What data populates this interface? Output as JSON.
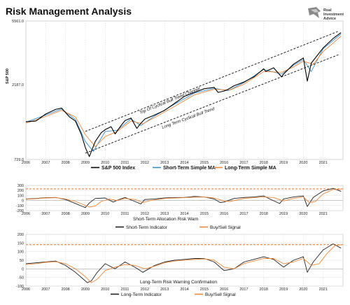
{
  "page": {
    "title": "Risk Management Analysis"
  },
  "logo": {
    "line1": "Real",
    "line2": "Investment",
    "line3": "Advice",
    "icon": "eagle-icon"
  },
  "chart_data": [
    {
      "type": "line",
      "ylabel": "S&P 500",
      "scale": "log",
      "ylim": [
        729.0,
        5561.0
      ],
      "yticks": [
        "729.0",
        "2187.0",
        "5561.0"
      ],
      "xticks": [
        "2006",
        "2007",
        "2008",
        "2009",
        "2010",
        "2011",
        "2012",
        "2013",
        "2014",
        "2015",
        "2016",
        "2017",
        "2018",
        "2019",
        "2020",
        "2021"
      ],
      "xlim": [
        2006.0,
        2022.0
      ],
      "series": [
        {
          "name": "S&P 500 Index",
          "color": "#000000",
          "x": [
            2006.0,
            2006.5,
            2007.0,
            2007.5,
            2007.8,
            2008.2,
            2008.5,
            2008.8,
            2009.0,
            2009.2,
            2009.5,
            2009.8,
            2010.0,
            2010.3,
            2010.5,
            2010.8,
            2011.0,
            2011.3,
            2011.6,
            2011.8,
            2012.0,
            2012.5,
            2013.0,
            2013.5,
            2014.0,
            2014.5,
            2015.0,
            2015.5,
            2015.7,
            2016.0,
            2016.2,
            2016.5,
            2017.0,
            2017.5,
            2018.0,
            2018.1,
            2018.5,
            2018.9,
            2019.0,
            2019.5,
            2020.0,
            2020.2,
            2020.4,
            2020.7,
            2021.0,
            2021.5,
            2021.9
          ],
          "y": [
            1270,
            1280,
            1420,
            1520,
            1550,
            1360,
            1280,
            1050,
            870,
            760,
            950,
            1080,
            1130,
            1180,
            1060,
            1200,
            1290,
            1340,
            1150,
            1240,
            1320,
            1400,
            1500,
            1660,
            1840,
            1950,
            2060,
            2100,
            1950,
            1990,
            2040,
            2150,
            2270,
            2450,
            2760,
            2650,
            2800,
            2450,
            2550,
            2950,
            3230,
            2300,
            3000,
            3350,
            3750,
            4300,
            4690
          ]
        },
        {
          "name": "Short-Term Simple MA",
          "color": "#3a8fc9",
          "x": [
            2006.0,
            2007.0,
            2007.8,
            2008.5,
            2009.0,
            2009.4,
            2010.0,
            2010.6,
            2011.3,
            2011.8,
            2012.5,
            2013.5,
            2014.5,
            2015.5,
            2016.2,
            2017.0,
            2018.0,
            2018.9,
            2019.5,
            2020.0,
            2020.4,
            2021.0,
            2021.9
          ],
          "y": [
            1260,
            1400,
            1530,
            1310,
            950,
            820,
            1100,
            1120,
            1320,
            1200,
            1380,
            1640,
            1930,
            2070,
            2000,
            2250,
            2730,
            2550,
            2900,
            3150,
            2650,
            3700,
            4600
          ]
        },
        {
          "name": "Long-Term Simple MA",
          "color": "#f0883a",
          "x": [
            2006.0,
            2007.0,
            2007.8,
            2008.5,
            2009.0,
            2009.5,
            2010.0,
            2010.6,
            2011.3,
            2011.9,
            2012.5,
            2013.5,
            2014.5,
            2015.5,
            2016.3,
            2017.0,
            2018.0,
            2018.9,
            2019.5,
            2020.0,
            2020.5,
            2021.0,
            2021.9
          ],
          "y": [
            1240,
            1370,
            1500,
            1360,
            1050,
            880,
            1020,
            1100,
            1280,
            1230,
            1350,
            1590,
            1880,
            2040,
            2020,
            2200,
            2650,
            2620,
            2830,
            3080,
            2950,
            3550,
            4450
          ]
        }
      ],
      "annotations": [
        {
          "text": "Top Of Cyclical Bull Trend Channel"
        },
        {
          "text": "Long Term Cyclical Bull Trend"
        }
      ],
      "channel": {
        "upper": {
          "x": [
            2009.0,
            2021.8
          ],
          "y": [
            1100,
            4800
          ]
        },
        "lower": {
          "x": [
            2009.0,
            2021.8
          ],
          "y": [
            800,
            3400
          ]
        }
      },
      "legend": [
        "S&P 500 Index",
        "Short-Term Simple MA",
        "Long-Term Simple MA"
      ],
      "legend_position": "bottom"
    },
    {
      "type": "line",
      "title": "Short-Term Allocation Risk Warn",
      "ylim": [
        -200,
        300
      ],
      "yticks": [
        "300",
        "200",
        "100",
        "0",
        "-100",
        "-200"
      ],
      "xticks": [
        "2006",
        "2007",
        "2008",
        "2009",
        "2010",
        "2011",
        "2012",
        "2013",
        "2014",
        "2015",
        "2016",
        "2017",
        "2018",
        "2019",
        "2020",
        "2021"
      ],
      "xlim": [
        2006.0,
        2022.0
      ],
      "threshold": {
        "value": 230,
        "color": "#e8701a"
      },
      "series": [
        {
          "name": "Short-Term Indicator",
          "color": "#222222",
          "x": [
            2006.0,
            2006.5,
            2007.0,
            2007.5,
            2008.0,
            2008.5,
            2008.8,
            2009.0,
            2009.2,
            2009.5,
            2010.0,
            2010.4,
            2010.7,
            2011.0,
            2011.5,
            2011.8,
            2012.0,
            2012.5,
            2013.0,
            2013.5,
            2014.0,
            2014.5,
            2015.0,
            2015.5,
            2015.8,
            2016.0,
            2016.5,
            2017.0,
            2017.5,
            2018.0,
            2018.3,
            2018.8,
            2019.0,
            2019.5,
            2020.0,
            2020.2,
            2020.5,
            2021.0,
            2021.5,
            2021.9
          ],
          "y": [
            30,
            40,
            55,
            60,
            20,
            -60,
            -110,
            -140,
            -50,
            40,
            50,
            -30,
            20,
            60,
            -20,
            -70,
            20,
            30,
            50,
            60,
            60,
            80,
            70,
            30,
            -40,
            -30,
            40,
            60,
            70,
            90,
            30,
            -60,
            30,
            70,
            90,
            -120,
            60,
            190,
            240,
            180
          ]
        },
        {
          "name": "Buy/Sell Signal",
          "color": "#f0883a",
          "x": [
            2006.0,
            2006.5,
            2007.0,
            2007.5,
            2008.0,
            2008.5,
            2008.9,
            2009.2,
            2009.5,
            2009.8,
            2010.2,
            2010.6,
            2011.0,
            2011.5,
            2011.9,
            2012.3,
            2013.0,
            2013.5,
            2014.0,
            2014.5,
            2015.0,
            2015.5,
            2016.0,
            2016.3,
            2017.0,
            2017.5,
            2018.0,
            2018.5,
            2019.0,
            2019.5,
            2020.0,
            2020.3,
            2020.6,
            2021.0,
            2021.5,
            2021.9
          ],
          "y": [
            25,
            35,
            50,
            55,
            30,
            -20,
            -80,
            -130,
            -110,
            -20,
            30,
            0,
            40,
            20,
            -40,
            0,
            40,
            50,
            55,
            65,
            70,
            50,
            -10,
            -20,
            40,
            55,
            70,
            60,
            -10,
            40,
            70,
            -40,
            -20,
            130,
            220,
            220
          ]
        }
      ],
      "legend": [
        "Short-Term Indicator",
        "Buy/Sell Signal"
      ],
      "legend_position": "bottom"
    },
    {
      "type": "line",
      "title": "Long-Term Risk Warning Confirmation",
      "ylim": [
        -100,
        200
      ],
      "yticks": [
        "200",
        "150",
        "100",
        "50",
        "0",
        "-50",
        "-100"
      ],
      "xticks": [
        "2006",
        "2007",
        "2008",
        "2009",
        "2010",
        "2011",
        "2012",
        "2013",
        "2014",
        "2015",
        "2016",
        "2017",
        "2018",
        "2019",
        "2020",
        "2021"
      ],
      "xlim": [
        2006.0,
        2022.0
      ],
      "threshold": {
        "value": 140,
        "color": "#e8701a"
      },
      "series": [
        {
          "name": "Long-Term Indicator",
          "color": "#222222",
          "x": [
            2006.0,
            2006.5,
            2007.0,
            2007.5,
            2008.0,
            2008.5,
            2008.9,
            2009.1,
            2009.3,
            2009.6,
            2010.0,
            2010.5,
            2011.0,
            2011.5,
            2011.9,
            2012.5,
            2013.0,
            2013.5,
            2014.0,
            2014.5,
            2015.0,
            2015.5,
            2016.0,
            2016.5,
            2017.0,
            2017.5,
            2018.0,
            2018.5,
            2019.0,
            2019.5,
            2020.0,
            2020.2,
            2020.5,
            2021.0,
            2021.5,
            2021.9
          ],
          "y": [
            30,
            35,
            40,
            45,
            20,
            -20,
            -60,
            -80,
            -70,
            -20,
            30,
            0,
            40,
            10,
            -20,
            20,
            40,
            50,
            55,
            60,
            60,
            40,
            -10,
            0,
            40,
            55,
            70,
            55,
            10,
            50,
            70,
            -20,
            40,
            110,
            145,
            120
          ]
        },
        {
          "name": "Buy/Sell Signal",
          "color": "#f0883a",
          "x": [
            2006.0,
            2006.5,
            2007.0,
            2007.5,
            2008.0,
            2008.5,
            2009.0,
            2009.3,
            2009.6,
            2010.0,
            2010.5,
            2011.0,
            2011.5,
            2012.0,
            2012.5,
            2013.0,
            2013.5,
            2014.0,
            2014.5,
            2015.0,
            2015.5,
            2016.0,
            2016.5,
            2017.0,
            2017.5,
            2018.0,
            2018.5,
            2019.0,
            2019.5,
            2020.0,
            2020.4,
            2020.8,
            2021.2,
            2021.6,
            2021.9
          ],
          "y": [
            25,
            30,
            38,
            42,
            30,
            0,
            -45,
            -80,
            -60,
            -10,
            10,
            25,
            20,
            0,
            15,
            35,
            45,
            50,
            55,
            58,
            50,
            10,
            0,
            30,
            45,
            60,
            60,
            30,
            40,
            60,
            20,
            30,
            90,
            135,
            140
          ]
        }
      ],
      "legend": [
        "Long-Term Indicator",
        "Buy/Sell Signal"
      ],
      "legend_position": "bottom"
    }
  ]
}
